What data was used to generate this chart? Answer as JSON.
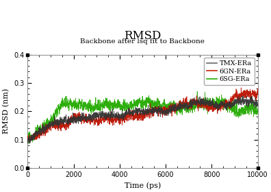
{
  "title": "RMSD",
  "subtitle": "Backbone after lsq fit to Backbone",
  "xlabel": "Time (ps)",
  "ylabel": "RMSD (nm)",
  "xlim": [
    0,
    10000
  ],
  "ylim": [
    0,
    0.4
  ],
  "xticks": [
    0,
    2000,
    4000,
    6000,
    8000,
    10000
  ],
  "yticks": [
    0,
    0.1,
    0.2,
    0.3,
    0.4
  ],
  "legend_labels": [
    "TMX-ERa",
    "6GN-ERa",
    "6SG-ERa"
  ],
  "legend_colors": [
    "#666666",
    "#cc2200",
    "#22aa00"
  ],
  "line_colors": [
    "#333333",
    "#bb1100",
    "#22aa00"
  ],
  "background_color": "#ffffff",
  "title_fontsize": 12,
  "subtitle_fontsize": 7.5,
  "axis_fontsize": 8,
  "tick_fontsize": 7,
  "legend_fontsize": 7
}
